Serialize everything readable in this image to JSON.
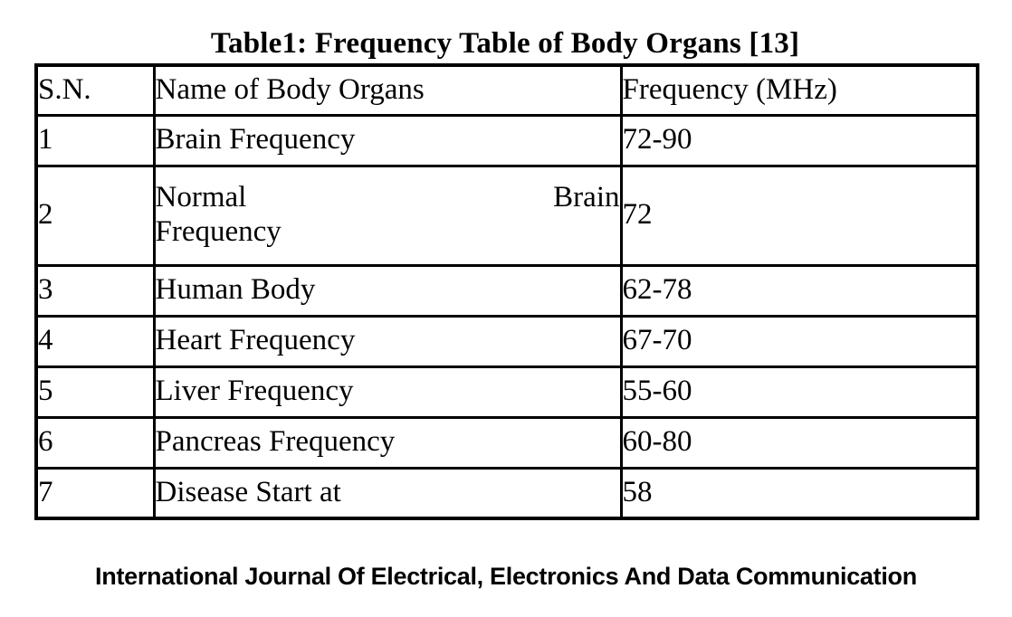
{
  "title": "Table1: Frequency Table of Body Organs [13]",
  "table": {
    "headers": [
      "S.N.",
      "Name of Body Organs",
      "Frequency (MHz)"
    ],
    "rows": [
      {
        "sn": "1",
        "name": "Brain Frequency",
        "freq": "72-90"
      },
      {
        "sn": "2",
        "name": "Normal Brain Frequency",
        "freq": "72",
        "tall": true,
        "name_lines": [
          {
            "left": "Normal",
            "right": "Brain"
          },
          {
            "text": "Frequency"
          }
        ]
      },
      {
        "sn": "3",
        "name": "Human Body",
        "freq": "62-78"
      },
      {
        "sn": "4",
        "name": "Heart Frequency",
        "freq": "67-70"
      },
      {
        "sn": "5",
        "name": "Liver Frequency",
        "freq": "55-60"
      },
      {
        "sn": "6",
        "name": "Pancreas Frequency",
        "freq": "60-80"
      },
      {
        "sn": "7",
        "name": "Disease Start at",
        "freq": "58"
      }
    ]
  },
  "footer": "International Journal Of Electrical, Electronics And Data Communication",
  "colors": {
    "text": "#000000",
    "border": "#000000",
    "background": "#ffffff"
  }
}
